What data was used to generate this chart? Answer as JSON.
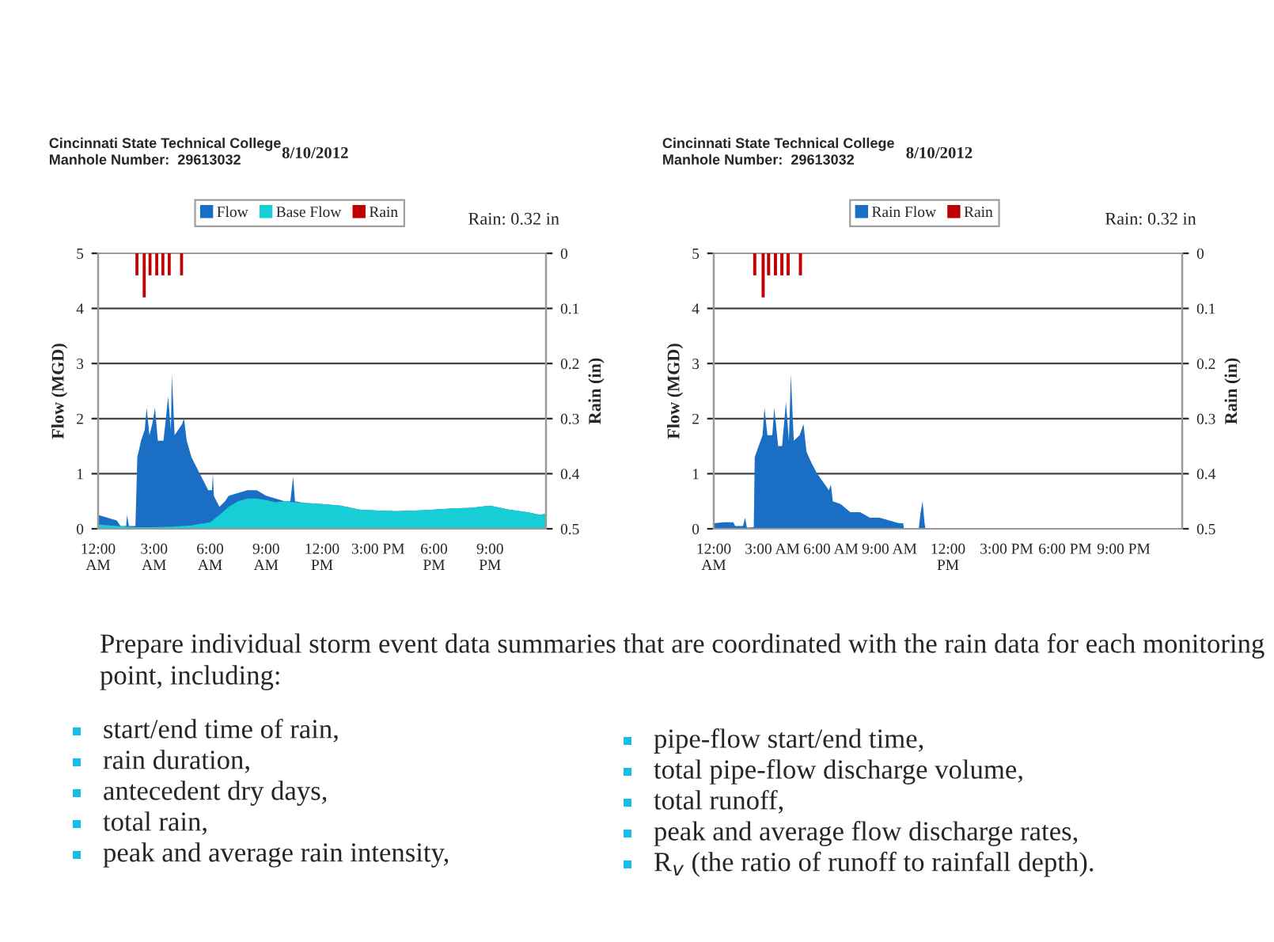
{
  "chart_data": [
    {
      "type": "area",
      "title": "Cincinnati State Technical College\nManhole Number:  29613032",
      "subtitle": "8/10/2012",
      "ylabel": "Flow (MGD)",
      "y2label": "Rain (in)",
      "annotations": [
        "Rain: 0.32 in"
      ],
      "legend": "top",
      "grid": "y",
      "xlim": [
        0,
        24
      ],
      "xticks": [
        {
          "value": 0,
          "label": "12:00\nAM"
        },
        {
          "value": 3,
          "label": "3:00\nAM"
        },
        {
          "value": 6,
          "label": "6:00\nAM"
        },
        {
          "value": 9,
          "label": "9:00\nAM"
        },
        {
          "value": 12,
          "label": "12:00\nPM"
        },
        {
          "value": 15,
          "label": "3:00 PM"
        },
        {
          "value": 18,
          "label": "6:00\nPM"
        },
        {
          "value": 21,
          "label": "9:00\nPM"
        }
      ],
      "ylim": [
        0,
        5
      ],
      "yticks": [
        0,
        1,
        2,
        3,
        4,
        5
      ],
      "y2lim": [
        0.5,
        0
      ],
      "y2ticks": [
        0,
        0.1,
        0.2,
        0.3,
        0.4,
        0.5
      ],
      "series": [
        {
          "name": "Flow",
          "type": "area",
          "color": "#1a6fc4",
          "x": [
            0,
            0.5,
            1,
            1.2,
            1.5,
            1.55,
            1.65,
            2.0,
            2.1,
            2.3,
            2.5,
            2.6,
            2.75,
            2.9,
            3.05,
            3.2,
            3.5,
            3.6,
            3.75,
            3.9,
            3.95,
            4.1,
            4.3,
            4.5,
            4.6,
            4.75,
            5.0,
            5.3,
            5.6,
            5.9,
            6.1,
            6.15,
            6.2,
            6.5,
            6.8,
            7.0,
            7.5,
            8.0,
            8.5,
            9.0,
            9.5,
            10,
            10.3,
            10.45,
            10.55,
            11,
            12,
            13,
            14,
            15,
            16,
            17,
            18,
            19,
            20,
            21,
            22,
            23,
            23.7,
            24
          ],
          "values": [
            0.25,
            0.2,
            0.15,
            0.05,
            0.05,
            0.25,
            0.05,
            0.05,
            1.3,
            1.6,
            1.8,
            2.2,
            1.7,
            1.9,
            2.2,
            1.6,
            1.6,
            1.9,
            2.4,
            1.8,
            2.8,
            1.7,
            1.8,
            1.9,
            2.0,
            1.6,
            1.3,
            1.1,
            0.9,
            0.7,
            0.7,
            1.0,
            0.6,
            0.4,
            0.5,
            0.6,
            0.65,
            0.7,
            0.7,
            0.6,
            0.55,
            0.5,
            0.5,
            0.95,
            0.5,
            0.47,
            0.45,
            0.42,
            0.35,
            0.33,
            0.32,
            0.33,
            0.35,
            0.37,
            0.38,
            0.42,
            0.35,
            0.3,
            0.25,
            0.28
          ]
        },
        {
          "name": "Base Flow",
          "type": "area",
          "color": "#17cdd6",
          "x": [
            0,
            1,
            2,
            3,
            4,
            5,
            6,
            6.5,
            7,
            7.5,
            8,
            8.5,
            9,
            9.5,
            10,
            10.5,
            11,
            12,
            13,
            14,
            15,
            16,
            17,
            18,
            19,
            20,
            21,
            22,
            23,
            23.7,
            24
          ],
          "values": [
            0.08,
            0.05,
            0.03,
            0.03,
            0.04,
            0.06,
            0.12,
            0.25,
            0.4,
            0.5,
            0.55,
            0.55,
            0.52,
            0.48,
            0.5,
            0.48,
            0.47,
            0.45,
            0.42,
            0.35,
            0.33,
            0.32,
            0.33,
            0.35,
            0.37,
            0.38,
            0.42,
            0.35,
            0.3,
            0.25,
            0.28
          ]
        },
        {
          "name": "Rain",
          "type": "bar",
          "axis": "y2",
          "color": "#c00000",
          "x": [
            2.08,
            2.47,
            2.78,
            3.14,
            3.47,
            3.81,
            4.47
          ],
          "values": [
            0.04,
            0.08,
            0.04,
            0.04,
            0.04,
            0.04,
            0.04
          ]
        }
      ]
    },
    {
      "type": "area",
      "title": "Cincinnati State Technical College\nManhole Number:  29613032",
      "subtitle": "8/10/2012",
      "ylabel": "Flow (MGD)",
      "y2label": "Rain (in)",
      "annotations": [
        "Rain: 0.32 in"
      ],
      "legend": "top",
      "grid": "y",
      "xlim": [
        0,
        24
      ],
      "xticks": [
        {
          "value": 0,
          "label": "12:00\nAM"
        },
        {
          "value": 3,
          "label": "3:00 AM"
        },
        {
          "value": 6,
          "label": "6:00 AM"
        },
        {
          "value": 9,
          "label": "9:00 AM"
        },
        {
          "value": 12,
          "label": "12:00\nPM"
        },
        {
          "value": 15,
          "label": "3:00 PM"
        },
        {
          "value": 18,
          "label": "6:00 PM"
        },
        {
          "value": 21,
          "label": "9:00 PM"
        }
      ],
      "ylim": [
        0,
        5
      ],
      "yticks": [
        0,
        1,
        2,
        3,
        4,
        5
      ],
      "y2lim": [
        0.5,
        0
      ],
      "y2ticks": [
        0,
        0.1,
        0.2,
        0.3,
        0.4,
        0.5
      ],
      "series": [
        {
          "name": "Rain Flow",
          "type": "area",
          "color": "#1a6fc4",
          "x": [
            0,
            0.5,
            1,
            1.1,
            1.5,
            1.6,
            1.7,
            2.05,
            2.1,
            2.3,
            2.5,
            2.6,
            2.75,
            3.0,
            3.1,
            3.3,
            3.5,
            3.7,
            3.85,
            3.95,
            4.1,
            4.4,
            4.6,
            4.75,
            5,
            5.3,
            5.6,
            5.9,
            6.0,
            6.1,
            6.5,
            7,
            7.5,
            8,
            8.5,
            9,
            9.5,
            9.7,
            9.75,
            10.5,
            10.6,
            10.7,
            10.8,
            10.85,
            24
          ],
          "values": [
            0.1,
            0.12,
            0.12,
            0.05,
            0.05,
            0.2,
            0.02,
            0.03,
            1.3,
            1.5,
            1.7,
            2.2,
            1.7,
            1.7,
            2.2,
            1.5,
            1.5,
            2.3,
            1.6,
            2.8,
            1.6,
            1.7,
            1.9,
            1.4,
            1.2,
            1.0,
            0.85,
            0.7,
            0.8,
            0.5,
            0.45,
            0.3,
            0.3,
            0.2,
            0.2,
            0.15,
            0.1,
            0.1,
            0,
            0,
            0.3,
            0.5,
            0.1,
            0,
            0
          ]
        },
        {
          "name": "Rain",
          "type": "bar",
          "axis": "y2",
          "color": "#c00000",
          "x": [
            2.1,
            2.53,
            2.81,
            3.16,
            3.49,
            3.81,
            4.44
          ],
          "values": [
            0.04,
            0.08,
            0.04,
            0.04,
            0.04,
            0.04,
            0.04
          ]
        }
      ]
    },
    {
      "type": "other",
      "annotations": [
        "Prepare individual storm event data summaries that are coordinated with the rain data for each monitoring point, including:",
        "start/end time of rain,",
        "rain duration,",
        "antecedent dry days,",
        "total rain,",
        "peak and average rain intensity,",
        "pipe-flow start/end time,",
        "total pipe-flow discharge volume,",
        "total runoff,",
        "peak and average flow discharge rates,",
        "R$_{v}$ (the ratio of runoff to rainfall depth)."
      ]
    }
  ]
}
